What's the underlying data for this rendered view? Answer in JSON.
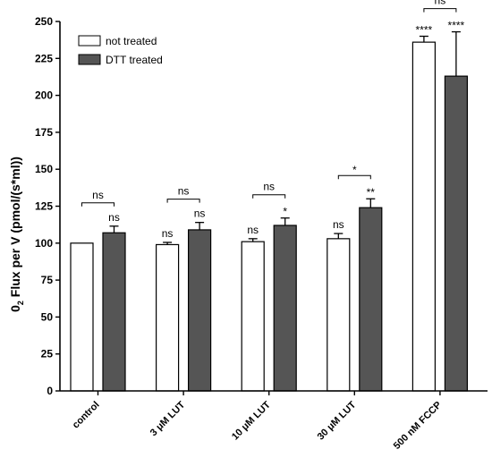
{
  "chart_data": {
    "type": "bar",
    "categories": [
      "control",
      "3 μM LUT",
      "10 μM LUT",
      "30 μM LUT",
      "500 nM FCCP"
    ],
    "series": [
      {
        "name": "not treated",
        "color": "#ffffff",
        "values": [
          100,
          99,
          101,
          103,
          236
        ],
        "errors": [
          0,
          1.5,
          2,
          3.5,
          4
        ],
        "sig": [
          "",
          "ns",
          "ns",
          "ns",
          "****"
        ]
      },
      {
        "name": "DTT treated",
        "color": "#555555",
        "values": [
          107,
          109,
          112,
          124,
          213
        ],
        "errors": [
          4.5,
          5,
          5,
          6,
          30
        ],
        "sig": [
          "ns",
          "ns",
          "*",
          "**",
          "****"
        ]
      }
    ],
    "pair_sig": [
      "ns",
      "ns",
      "ns",
      "*",
      "ns"
    ],
    "ylabel_prefix": "0",
    "ylabel_subscript": "2",
    "ylabel_rest": " Flux per V (pmol/(s*ml))",
    "ylim": [
      0,
      250
    ],
    "yticks": [
      0,
      25,
      50,
      75,
      100,
      125,
      150,
      175,
      200,
      225,
      250
    ],
    "legend_position": "top-left",
    "grid": false
  }
}
